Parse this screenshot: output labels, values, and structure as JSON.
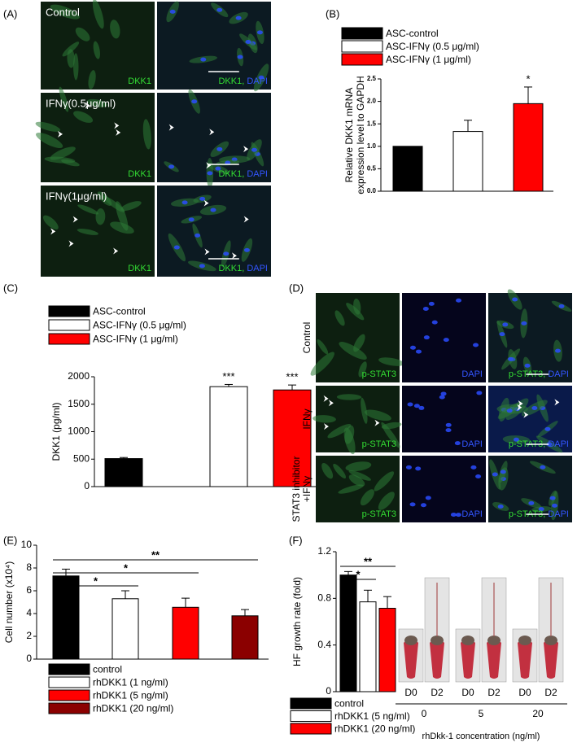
{
  "chart_data": [
    {
      "type": "bar",
      "panel_label": "(B)",
      "ylabel": [
        "Relative DKK1 mRNA",
        "expression level to GAPDH"
      ],
      "ylim": [
        0,
        2.5
      ],
      "yticks": [
        {
          "value": 0,
          "label": "0.0"
        },
        0.5,
        {
          "value": 1,
          "label": "1.0"
        },
        1.5,
        {
          "value": 2,
          "label": "2.0"
        },
        2.5
      ],
      "series": [
        {
          "name": "ASC-control",
          "color": "#000000",
          "values": [
            1.0
          ]
        },
        {
          "name": "ASC-IFNγ (0.5 μg/ml)",
          "color": "#ffffff",
          "values": [
            1.33
          ],
          "errors": [
            0.25
          ]
        },
        {
          "name": "ASC-IFNγ (1 μg/ml)",
          "color": "#ff0000",
          "values": [
            1.95
          ],
          "errors": [
            0.37
          ]
        }
      ],
      "annotations": [
        {
          "text": "*",
          "series": 2
        }
      ]
    },
    {
      "type": "bar",
      "panel_label": "(C)",
      "ylabel": "DKK1 (pg/ml)",
      "ylim": [
        0,
        2000
      ],
      "yticks": [
        0,
        500,
        1000,
        1500,
        2000
      ],
      "series": [
        {
          "name": "ASC-control",
          "color": "#000000",
          "values": [
            510
          ],
          "errors": [
            20
          ]
        },
        {
          "name": "ASC-IFNγ (0.5 μg/ml)",
          "color": "#ffffff",
          "values": [
            1820
          ],
          "errors": [
            40
          ]
        },
        {
          "name": "ASC-IFNγ (1 μg/ml)",
          "color": "#ff0000",
          "values": [
            1760
          ],
          "errors": [
            90
          ]
        }
      ],
      "annotations": [
        {
          "text": "***",
          "series": 1
        },
        {
          "text": "***",
          "series": 2
        }
      ]
    },
    {
      "type": "bar",
      "panel_label": "(E)",
      "ylabel": "Cell number (x10⁴)",
      "ylim": [
        0,
        10
      ],
      "yticks": [
        0,
        2,
        4,
        6,
        8,
        10
      ],
      "series": [
        {
          "name": "control",
          "color": "#000000",
          "values": [
            7.3
          ],
          "errors": [
            0.6
          ]
        },
        {
          "name": "rhDKK1 (1 ng/ml)",
          "color": "#ffffff",
          "values": [
            5.3
          ],
          "errors": [
            0.7
          ]
        },
        {
          "name": "rhDKK1 (5 ng/ml)",
          "color": "#ff0000",
          "values": [
            4.55
          ],
          "errors": [
            0.8
          ]
        },
        {
          "name": "rhDKK1 (20 ng/ml)",
          "color": "#8b0000",
          "values": [
            3.8
          ],
          "errors": [
            0.55
          ]
        }
      ],
      "significance": [
        {
          "label": "*",
          "from": 0,
          "to": 1
        },
        {
          "label": "*",
          "from": 0,
          "to": 2
        },
        {
          "label": "**",
          "from": 0,
          "to": 3
        }
      ]
    },
    {
      "type": "bar",
      "panel_label": "(F)",
      "ylabel": "HF growth rate (fold)",
      "ylim": [
        0,
        1.2
      ],
      "yticks": [
        0,
        0.4,
        0.8,
        1.2
      ],
      "series": [
        {
          "name": "control",
          "color": "#000000",
          "values": [
            1.0
          ],
          "errors": [
            0.03
          ]
        },
        {
          "name": "rhDKK1 (5 ng/ml)",
          "color": "#ffffff",
          "values": [
            0.77
          ],
          "errors": [
            0.1
          ]
        },
        {
          "name": "rhDKK1 (20 ng/ml)",
          "color": "#ff0000",
          "values": [
            0.715
          ],
          "errors": [
            0.1
          ]
        }
      ],
      "significance": [
        {
          "label": "*",
          "from": 0,
          "to": 1
        },
        {
          "label": "**",
          "from": 0,
          "to": 2
        }
      ]
    }
  ],
  "micrographs": [
    {
      "panel_label": "(A)",
      "rows": [
        "Control",
        "IFNγ(0.5μg/ml)",
        "IFNγ(1μg/ml)"
      ],
      "columns": [
        [
          {
            "text": "DKK1",
            "color": "#33dd33"
          }
        ],
        [
          {
            "text": "DKK1, ",
            "color": "#33dd33"
          },
          {
            "text": "DAPI",
            "color": "#3355ff"
          }
        ]
      ]
    },
    {
      "panel_label": "(D)",
      "rows": [
        [
          "Control"
        ],
        [
          "IFNγ"
        ],
        [
          "STAT3 inhibitor",
          "+IFNγ"
        ]
      ],
      "columns": [
        [
          {
            "text": "p-STAT3",
            "color": "#33dd33"
          }
        ],
        [
          {
            "text": "DAPI",
            "color": "#3355ff"
          }
        ],
        [
          {
            "text": "p-STAT3, ",
            "color": "#33dd33"
          },
          {
            "text": "DAPI",
            "color": "#3355ff"
          }
        ]
      ]
    }
  ],
  "photos": {
    "time_labels": [
      "D0",
      "D2"
    ],
    "groups": [
      "0",
      "5",
      "20"
    ],
    "xlabel": "rhDkk-1 concentration (ng/ml)"
  }
}
